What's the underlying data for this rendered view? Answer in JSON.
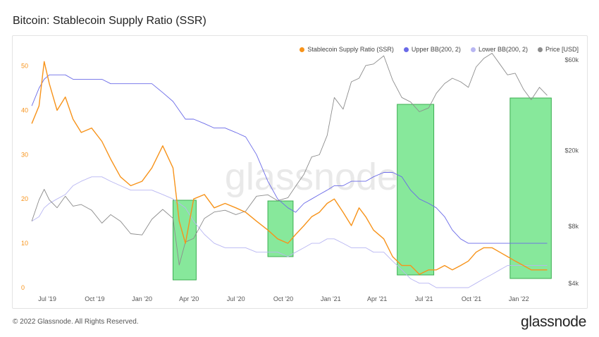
{
  "page": {
    "title": "Bitcoin: Stablecoin Supply Ratio (SSR)",
    "copyright": "© 2022 Glassnode. All Rights Reserved.",
    "logo": "glassnode",
    "watermark": "glassnode"
  },
  "chart_data": {
    "type": "line",
    "title": "Bitcoin: Stablecoin Supply Ratio (SSR)",
    "x_tick_labels": [
      "Jul '19",
      "Oct '19",
      "Jan '20",
      "Apr '20",
      "Jul '20",
      "Oct '20",
      "Jan '21",
      "Apr '21",
      "Jul '21",
      "Oct '21",
      "Jan '22"
    ],
    "y_left": {
      "ticks": [
        "0",
        "10",
        "20",
        "30",
        "40",
        "50"
      ],
      "ylim": [
        0,
        52
      ],
      "color": "#f7931a"
    },
    "y_right": {
      "ticks": [
        "$4k",
        "$8k",
        "$20k",
        "$60k"
      ],
      "scale": "log",
      "ylim": [
        3800,
        62000
      ]
    },
    "grid": false,
    "legend_position": "top-right",
    "legend": [
      {
        "label": "Stablecoin Supply Ratio (SSR)",
        "color": "#f7931a"
      },
      {
        "label": "Upper BB(200, 2)",
        "color": "#6a6ae8"
      },
      {
        "label": "Lower BB(200, 2)",
        "color": "#b8b6f2"
      },
      {
        "label": "Price [USD]",
        "color": "#8c8c8c"
      }
    ],
    "dates": [
      "2019-06-01",
      "2019-06-15",
      "2019-06-25",
      "2019-07-05",
      "2019-07-20",
      "2019-08-05",
      "2019-08-20",
      "2019-09-05",
      "2019-09-25",
      "2019-10-15",
      "2019-11-01",
      "2019-11-20",
      "2019-12-10",
      "2020-01-01",
      "2020-01-20",
      "2020-02-10",
      "2020-03-01",
      "2020-03-13",
      "2020-03-25",
      "2020-04-10",
      "2020-05-01",
      "2020-05-20",
      "2020-06-10",
      "2020-07-01",
      "2020-07-20",
      "2020-08-10",
      "2020-09-01",
      "2020-09-20",
      "2020-10-10",
      "2020-10-25",
      "2020-11-10",
      "2020-11-25",
      "2020-12-10",
      "2020-12-25",
      "2021-01-08",
      "2021-01-25",
      "2021-02-10",
      "2021-02-25",
      "2021-03-10",
      "2021-03-25",
      "2021-04-14",
      "2021-05-01",
      "2021-05-19",
      "2021-06-05",
      "2021-06-22",
      "2021-07-10",
      "2021-07-25",
      "2021-08-10",
      "2021-08-25",
      "2021-09-10",
      "2021-09-25",
      "2021-10-10",
      "2021-10-25",
      "2021-11-10",
      "2021-11-25",
      "2021-12-10",
      "2021-12-25",
      "2022-01-10",
      "2022-01-25",
      "2022-02-10",
      "2022-02-25"
    ],
    "series": [
      {
        "name": "Stablecoin Supply Ratio (SSR)",
        "axis": "left",
        "color": "#f7931a",
        "values": [
          37,
          41,
          51,
          46,
          40,
          43,
          38,
          35,
          36,
          33,
          29,
          25,
          23,
          24,
          27,
          32,
          27,
          15,
          10,
          20,
          21,
          18,
          19,
          18,
          17,
          15,
          13,
          11,
          10,
          12,
          14,
          16,
          17,
          19,
          20,
          17,
          14,
          18,
          16,
          13,
          11,
          7,
          5,
          5,
          3,
          4,
          4,
          5,
          4,
          5,
          6,
          8,
          9,
          9,
          8,
          7,
          6,
          5,
          4,
          4,
          4
        ]
      },
      {
        "name": "Upper BB(200, 2)",
        "axis": "left",
        "color": "#6a6ae8",
        "values": [
          41,
          45,
          47,
          48,
          48,
          48,
          47,
          47,
          47,
          47,
          46,
          46,
          46,
          46,
          46,
          44,
          42,
          40,
          38,
          38,
          37,
          36,
          36,
          35,
          34,
          30,
          24,
          20,
          18,
          17,
          19,
          20,
          21,
          22,
          23,
          23,
          24,
          24,
          24,
          25,
          26,
          26,
          25,
          22,
          20,
          19,
          18,
          16,
          13,
          11,
          10,
          10,
          10,
          10,
          10,
          10,
          10,
          10,
          10,
          10,
          10
        ]
      },
      {
        "name": "Lower BB(200, 2)",
        "axis": "left",
        "color": "#b8b6f2",
        "values": [
          15,
          16,
          18,
          19,
          20,
          21,
          23,
          24,
          25,
          25,
          24,
          23,
          22,
          22,
          22,
          21,
          20,
          19,
          18,
          15,
          12,
          10,
          9,
          9,
          9,
          8,
          8,
          8,
          7,
          8,
          9,
          10,
          10,
          11,
          11,
          10,
          9,
          9,
          9,
          8,
          8,
          6,
          4,
          2,
          1,
          1,
          0,
          0,
          0,
          0,
          0,
          1,
          2,
          3,
          4,
          5,
          5,
          5,
          5,
          5,
          5
        ]
      },
      {
        "name": "Price [USD]",
        "axis": "right",
        "color": "#8c8c8c",
        "values": [
          8500,
          11000,
          12500,
          11000,
          10000,
          11500,
          10200,
          10400,
          9700,
          8300,
          9200,
          8500,
          7300,
          7200,
          8700,
          9800,
          8800,
          5000,
          6600,
          6900,
          8800,
          9500,
          9700,
          9200,
          9600,
          11500,
          11700,
          10900,
          11300,
          13000,
          15000,
          18500,
          19000,
          24000,
          38000,
          33000,
          46000,
          48000,
          56000,
          57000,
          63000,
          47000,
          38000,
          36000,
          32000,
          33500,
          40000,
          45000,
          48000,
          46000,
          43000,
          55000,
          61000,
          65000,
          57000,
          50000,
          51000,
          42000,
          37000,
          43000,
          39000
        ]
      }
    ],
    "highlights": [
      {
        "from": "2020-03-01",
        "to": "2020-04-15"
      },
      {
        "from": "2020-09-01",
        "to": "2020-10-20"
      },
      {
        "from": "2021-05-10",
        "to": "2021-07-20"
      },
      {
        "from": "2021-12-15",
        "to": "2022-03-05"
      }
    ]
  }
}
